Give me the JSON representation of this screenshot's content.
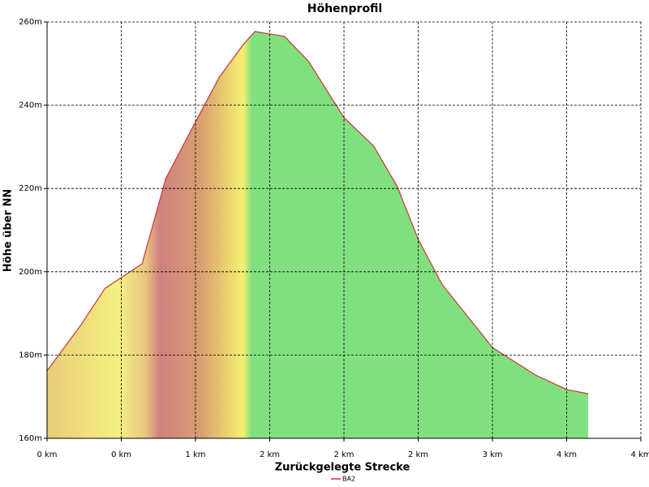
{
  "chart_data": {
    "type": "area",
    "title": "Höhenprofil",
    "x_label": "Zurückgelegte Strecke",
    "y_label": "Höhe über NN",
    "series": [
      {
        "name": "BA2",
        "color": "#cc3333",
        "x": [
          0,
          0.23,
          0.39,
          0.5,
          0.64,
          0.8,
          1.0,
          1.16,
          1.32,
          1.4,
          1.6,
          1.76,
          2.0,
          2.2,
          2.36,
          2.5,
          2.66,
          3.0,
          3.29,
          3.5,
          3.645
        ],
        "values": [
          176.2,
          187.3,
          196,
          198.6,
          201.9,
          222.4,
          236,
          246.7,
          254.5,
          257.7,
          256.5,
          250.6,
          237,
          230.2,
          220.4,
          207.8,
          197,
          181.8,
          175.2,
          171.7,
          170.7
        ]
      }
    ],
    "xlim": [
      0,
      4
    ],
    "xticks": [
      {
        "value": 0,
        "label": "0 km"
      },
      {
        "value": 0.5,
        "label": "0 km"
      },
      {
        "value": 1,
        "label": "1 km"
      },
      {
        "value": 1.5,
        "label": "2 km"
      },
      {
        "value": 2,
        "label": "2 km"
      },
      {
        "value": 2.5,
        "label": "2 km"
      },
      {
        "value": 3,
        "label": "3 km"
      },
      {
        "value": 3.5,
        "label": "4 km"
      },
      {
        "value": 4,
        "label": "4 km"
      }
    ],
    "ylim": [
      160,
      260
    ],
    "yticks": [
      {
        "value": 160,
        "label": "160m"
      },
      {
        "value": 180,
        "label": "180m"
      },
      {
        "value": 200,
        "label": "200m"
      },
      {
        "value": 220,
        "label": "220m"
      },
      {
        "value": 240,
        "label": "240m"
      },
      {
        "value": 260,
        "label": "260m"
      }
    ],
    "grid": true,
    "legend": "bottom"
  }
}
